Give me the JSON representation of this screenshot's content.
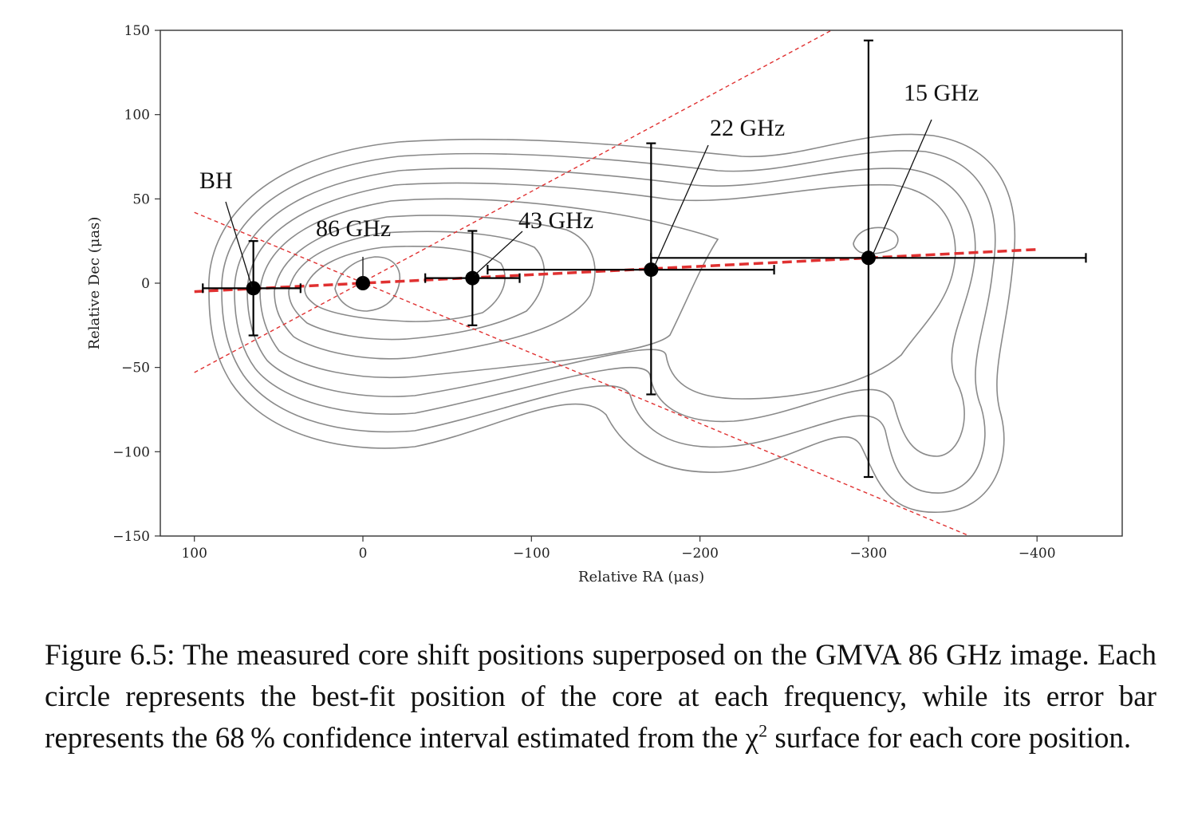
{
  "chart_data": {
    "type": "scatter",
    "xlabel": "Relative RA (μas)",
    "ylabel": "Relative Dec (μas)",
    "xlim": [
      120,
      -450
    ],
    "ylim": [
      -150,
      150
    ],
    "xticks": [
      100,
      0,
      -100,
      -200,
      -300,
      -400
    ],
    "yticks": [
      150,
      100,
      50,
      0,
      -50,
      -100,
      -150
    ],
    "xtick_labels": [
      "100",
      "0",
      "−100",
      "−200",
      "−300",
      "−400"
    ],
    "ytick_labels": [
      "150",
      "100",
      "50",
      "0",
      "−50",
      "−100",
      "−150"
    ],
    "series": [
      {
        "name": "BH",
        "x": 65,
        "y": -3,
        "xerr": [
          30,
          28
        ],
        "yerr": [
          28,
          28
        ]
      },
      {
        "name": "86 GHz",
        "x": 0,
        "y": 0,
        "xerr": [
          0,
          0
        ],
        "yerr": [
          0,
          0
        ]
      },
      {
        "name": "43 GHz",
        "x": -65,
        "y": 3,
        "xerr": [
          28,
          28
        ],
        "yerr": [
          28,
          28
        ]
      },
      {
        "name": "22 GHz",
        "x": -171,
        "y": 8,
        "xerr": [
          97,
          73
        ],
        "yerr": [
          74,
          75
        ]
      },
      {
        "name": "15 GHz",
        "x": -300,
        "y": 15,
        "xerr": [
          129,
          129
        ],
        "yerr": [
          130,
          129
        ]
      }
    ],
    "fit_line": {
      "x": [
        100,
        -400
      ],
      "y": [
        -5,
        20
      ],
      "color": "#e03131"
    },
    "cone_lines": [
      {
        "x": [
          100,
          -278
        ],
        "y": [
          -53,
          150
        ]
      },
      {
        "x": [
          100,
          -360
        ],
        "y": [
          42,
          -150
        ]
      }
    ],
    "labels": {
      "bh": "BH",
      "ghz86": "86 GHz",
      "ghz43": "43 GHz",
      "ghz22": "22 GHz",
      "ghz15": "15 GHz"
    }
  },
  "caption": {
    "part1": "Figure 6.5: The measured core shift positions superposed on the GMVA 86 GHz image. Each circle represents the best-fit position of the core at each frequency, while its error bar represents the 68 % confidence interval estimated from the ",
    "chi": "χ",
    "sup": "2",
    "part2": " surface for each core position."
  }
}
